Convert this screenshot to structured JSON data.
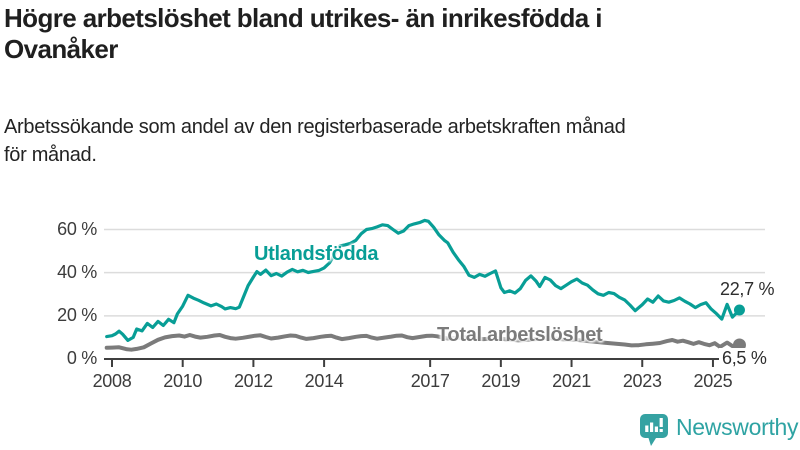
{
  "header": {
    "title": "Högre arbetslöshet bland utrikes- än inrikesfödda i Ovanåker",
    "title_lines": [
      "Högre arbetslöshet bland utrikes- än inrikesfödda i",
      "Ovanåker"
    ],
    "subtitle": "Arbetssökande som andel av den registerbaserade arbetskraften månad för månad.",
    "subtitle_lines": [
      "Arbetssökande som andel av den registerbaserade arbetskraften månad",
      "för månad."
    ]
  },
  "chart_data": {
    "type": "line",
    "title": "Högre arbetslöshet bland utrikes- än inrikesfödda i Ovanåker",
    "xlabel": "",
    "ylabel": "Arbetssökande som andel av den registerbaserade arbetskraften",
    "x_axis": {
      "ticks": [
        2008,
        2010,
        2012,
        2014,
        2017,
        2019,
        2021,
        2023,
        2025
      ],
      "range": [
        2007.8,
        2026.3
      ]
    },
    "y_axis": {
      "ticks": [
        0,
        20,
        40,
        60
      ],
      "unit": "%",
      "range": [
        0,
        67
      ],
      "grid": true
    },
    "grid": "horizontal",
    "legend_position": "inline-labels",
    "series": [
      {
        "name": "Utlandsfödda",
        "color": "#089e96",
        "end_label": "22,7 %",
        "end_value": 22.7,
        "points": [
          [
            2007.85,
            10.4
          ],
          [
            2008.0,
            10.8
          ],
          [
            2008.1,
            11.6
          ],
          [
            2008.2,
            12.9
          ],
          [
            2008.3,
            11.5
          ],
          [
            2008.45,
            8.6
          ],
          [
            2008.6,
            10.0
          ],
          [
            2008.7,
            13.9
          ],
          [
            2008.85,
            13.0
          ],
          [
            2009.0,
            16.5
          ],
          [
            2009.15,
            14.6
          ],
          [
            2009.3,
            17.4
          ],
          [
            2009.45,
            15.5
          ],
          [
            2009.6,
            18.4
          ],
          [
            2009.75,
            16.8
          ],
          [
            2009.85,
            20.9
          ],
          [
            2010.0,
            24.5
          ],
          [
            2010.15,
            29.5
          ],
          [
            2010.3,
            28.2
          ],
          [
            2010.45,
            27.2
          ],
          [
            2010.6,
            26.0
          ],
          [
            2010.8,
            24.6
          ],
          [
            2010.95,
            25.5
          ],
          [
            2011.1,
            24.3
          ],
          [
            2011.2,
            23.2
          ],
          [
            2011.35,
            23.8
          ],
          [
            2011.5,
            23.3
          ],
          [
            2011.6,
            24.0
          ],
          [
            2011.7,
            28.0
          ],
          [
            2011.85,
            34.0
          ],
          [
            2012.0,
            38.0
          ],
          [
            2012.1,
            40.5
          ],
          [
            2012.2,
            39.2
          ],
          [
            2012.35,
            41.2
          ],
          [
            2012.5,
            38.6
          ],
          [
            2012.65,
            39.6
          ],
          [
            2012.8,
            38.4
          ],
          [
            2012.95,
            40.2
          ],
          [
            2013.1,
            41.5
          ],
          [
            2013.25,
            40.4
          ],
          [
            2013.4,
            41.1
          ],
          [
            2013.55,
            40.1
          ],
          [
            2013.7,
            40.6
          ],
          [
            2013.85,
            41.0
          ],
          [
            2014.0,
            42.2
          ],
          [
            2014.15,
            44.5
          ],
          [
            2014.3,
            48.5
          ],
          [
            2014.45,
            52.4
          ],
          [
            2014.6,
            52.9
          ],
          [
            2014.75,
            53.6
          ],
          [
            2014.9,
            55.0
          ],
          [
            2015.05,
            58.0
          ],
          [
            2015.2,
            60.0
          ],
          [
            2015.35,
            60.4
          ],
          [
            2015.5,
            61.2
          ],
          [
            2015.65,
            62.2
          ],
          [
            2015.8,
            61.8
          ],
          [
            2015.95,
            60.0
          ],
          [
            2016.1,
            58.3
          ],
          [
            2016.25,
            59.3
          ],
          [
            2016.4,
            61.8
          ],
          [
            2016.55,
            62.6
          ],
          [
            2016.7,
            63.2
          ],
          [
            2016.85,
            64.2
          ],
          [
            2016.95,
            63.8
          ],
          [
            2017.1,
            61.0
          ],
          [
            2017.25,
            57.5
          ],
          [
            2017.4,
            55.0
          ],
          [
            2017.5,
            53.8
          ],
          [
            2017.65,
            49.5
          ],
          [
            2017.8,
            46.0
          ],
          [
            2017.95,
            43.0
          ],
          [
            2018.1,
            38.8
          ],
          [
            2018.25,
            37.8
          ],
          [
            2018.4,
            39.2
          ],
          [
            2018.55,
            38.3
          ],
          [
            2018.7,
            39.6
          ],
          [
            2018.85,
            40.8
          ],
          [
            2019.0,
            33.0
          ],
          [
            2019.1,
            30.8
          ],
          [
            2019.25,
            31.6
          ],
          [
            2019.4,
            30.6
          ],
          [
            2019.55,
            32.6
          ],
          [
            2019.7,
            36.4
          ],
          [
            2019.85,
            38.5
          ],
          [
            2020.0,
            36.0
          ],
          [
            2020.1,
            33.6
          ],
          [
            2020.25,
            37.8
          ],
          [
            2020.4,
            36.6
          ],
          [
            2020.55,
            34.0
          ],
          [
            2020.7,
            32.6
          ],
          [
            2020.85,
            34.2
          ],
          [
            2021.0,
            35.8
          ],
          [
            2021.15,
            37.0
          ],
          [
            2021.3,
            35.2
          ],
          [
            2021.45,
            34.2
          ],
          [
            2021.6,
            32.0
          ],
          [
            2021.75,
            30.2
          ],
          [
            2021.9,
            29.5
          ],
          [
            2022.05,
            30.8
          ],
          [
            2022.2,
            30.3
          ],
          [
            2022.35,
            28.6
          ],
          [
            2022.5,
            27.4
          ],
          [
            2022.65,
            25.0
          ],
          [
            2022.8,
            22.4
          ],
          [
            2023.0,
            25.2
          ],
          [
            2023.15,
            27.8
          ],
          [
            2023.3,
            26.3
          ],
          [
            2023.45,
            29.2
          ],
          [
            2023.6,
            26.9
          ],
          [
            2023.75,
            26.3
          ],
          [
            2023.9,
            27.1
          ],
          [
            2024.05,
            28.3
          ],
          [
            2024.2,
            26.8
          ],
          [
            2024.35,
            25.5
          ],
          [
            2024.5,
            23.8
          ],
          [
            2024.65,
            25.2
          ],
          [
            2024.8,
            26.1
          ],
          [
            2024.95,
            23.1
          ],
          [
            2025.1,
            21.0
          ],
          [
            2025.25,
            18.5
          ],
          [
            2025.4,
            25.3
          ],
          [
            2025.55,
            19.4
          ],
          [
            2025.75,
            22.7
          ]
        ]
      },
      {
        "name": "Total arbetslöshet",
        "color": "#7b7b7b",
        "end_label": "6,5 %",
        "end_value": 6.5,
        "points": [
          [
            2007.85,
            5.2
          ],
          [
            2008.0,
            5.3
          ],
          [
            2008.2,
            5.4
          ],
          [
            2008.4,
            4.6
          ],
          [
            2008.55,
            4.3
          ],
          [
            2008.7,
            4.7
          ],
          [
            2008.9,
            5.4
          ],
          [
            2009.1,
            7.2
          ],
          [
            2009.3,
            8.9
          ],
          [
            2009.5,
            10.0
          ],
          [
            2009.7,
            10.6
          ],
          [
            2009.9,
            10.9
          ],
          [
            2010.05,
            10.4
          ],
          [
            2010.2,
            11.1
          ],
          [
            2010.35,
            10.4
          ],
          [
            2010.5,
            9.9
          ],
          [
            2010.7,
            10.3
          ],
          [
            2010.9,
            10.9
          ],
          [
            2011.05,
            11.1
          ],
          [
            2011.2,
            10.3
          ],
          [
            2011.35,
            9.7
          ],
          [
            2011.5,
            9.4
          ],
          [
            2011.7,
            9.8
          ],
          [
            2011.9,
            10.4
          ],
          [
            2012.05,
            10.8
          ],
          [
            2012.2,
            11.0
          ],
          [
            2012.35,
            10.2
          ],
          [
            2012.5,
            9.5
          ],
          [
            2012.7,
            9.9
          ],
          [
            2012.9,
            10.5
          ],
          [
            2013.05,
            10.9
          ],
          [
            2013.2,
            10.7
          ],
          [
            2013.35,
            9.9
          ],
          [
            2013.5,
            9.3
          ],
          [
            2013.7,
            9.7
          ],
          [
            2013.9,
            10.3
          ],
          [
            2014.05,
            10.6
          ],
          [
            2014.2,
            10.8
          ],
          [
            2014.35,
            9.9
          ],
          [
            2014.5,
            9.2
          ],
          [
            2014.7,
            9.7
          ],
          [
            2014.9,
            10.3
          ],
          [
            2015.05,
            10.6
          ],
          [
            2015.2,
            10.7
          ],
          [
            2015.35,
            9.9
          ],
          [
            2015.5,
            9.4
          ],
          [
            2015.7,
            9.9
          ],
          [
            2015.9,
            10.4
          ],
          [
            2016.05,
            10.8
          ],
          [
            2016.2,
            10.9
          ],
          [
            2016.35,
            10.1
          ],
          [
            2016.5,
            9.7
          ],
          [
            2016.7,
            10.2
          ],
          [
            2016.9,
            10.7
          ],
          [
            2017.05,
            10.8
          ],
          [
            2017.2,
            10.5
          ],
          [
            2017.35,
            9.9
          ],
          [
            2017.5,
            9.5
          ],
          [
            2017.7,
            9.7
          ],
          [
            2017.9,
            10.0
          ],
          [
            2018.1,
            10.1
          ],
          [
            2018.3,
            9.6
          ],
          [
            2018.5,
            9.2
          ],
          [
            2018.7,
            9.4
          ],
          [
            2018.9,
            9.6
          ],
          [
            2019.1,
            9.2
          ],
          [
            2019.3,
            8.9
          ],
          [
            2019.5,
            8.6
          ],
          [
            2019.7,
            8.8
          ],
          [
            2019.9,
            9.1
          ],
          [
            2020.1,
            9.4
          ],
          [
            2020.3,
            9.8
          ],
          [
            2020.5,
            9.5
          ],
          [
            2020.7,
            9.2
          ],
          [
            2020.9,
            9.0
          ],
          [
            2021.1,
            8.9
          ],
          [
            2021.3,
            8.6
          ],
          [
            2021.5,
            8.2
          ],
          [
            2021.7,
            7.9
          ],
          [
            2021.9,
            7.6
          ],
          [
            2022.1,
            7.3
          ],
          [
            2022.3,
            7.0
          ],
          [
            2022.5,
            6.7
          ],
          [
            2022.7,
            6.3
          ],
          [
            2022.9,
            6.4
          ],
          [
            2023.1,
            6.8
          ],
          [
            2023.3,
            7.1
          ],
          [
            2023.5,
            7.4
          ],
          [
            2023.7,
            8.3
          ],
          [
            2023.85,
            8.8
          ],
          [
            2024.0,
            8.0
          ],
          [
            2024.15,
            8.5
          ],
          [
            2024.3,
            7.8
          ],
          [
            2024.45,
            7.0
          ],
          [
            2024.6,
            7.8
          ],
          [
            2024.75,
            7.0
          ],
          [
            2024.9,
            6.4
          ],
          [
            2025.05,
            7.3
          ],
          [
            2025.2,
            5.6
          ],
          [
            2025.4,
            7.6
          ],
          [
            2025.55,
            6.0
          ],
          [
            2025.75,
            6.5
          ]
        ]
      }
    ]
  },
  "colors": {
    "accent_teal": "#089e96",
    "series_gray": "#7b7b7b",
    "grid": "#dcdcdc",
    "axis": "#3f3f3f",
    "brand_teal": "#2ea3a3"
  },
  "footer": {
    "brand": "Newsworthy"
  }
}
